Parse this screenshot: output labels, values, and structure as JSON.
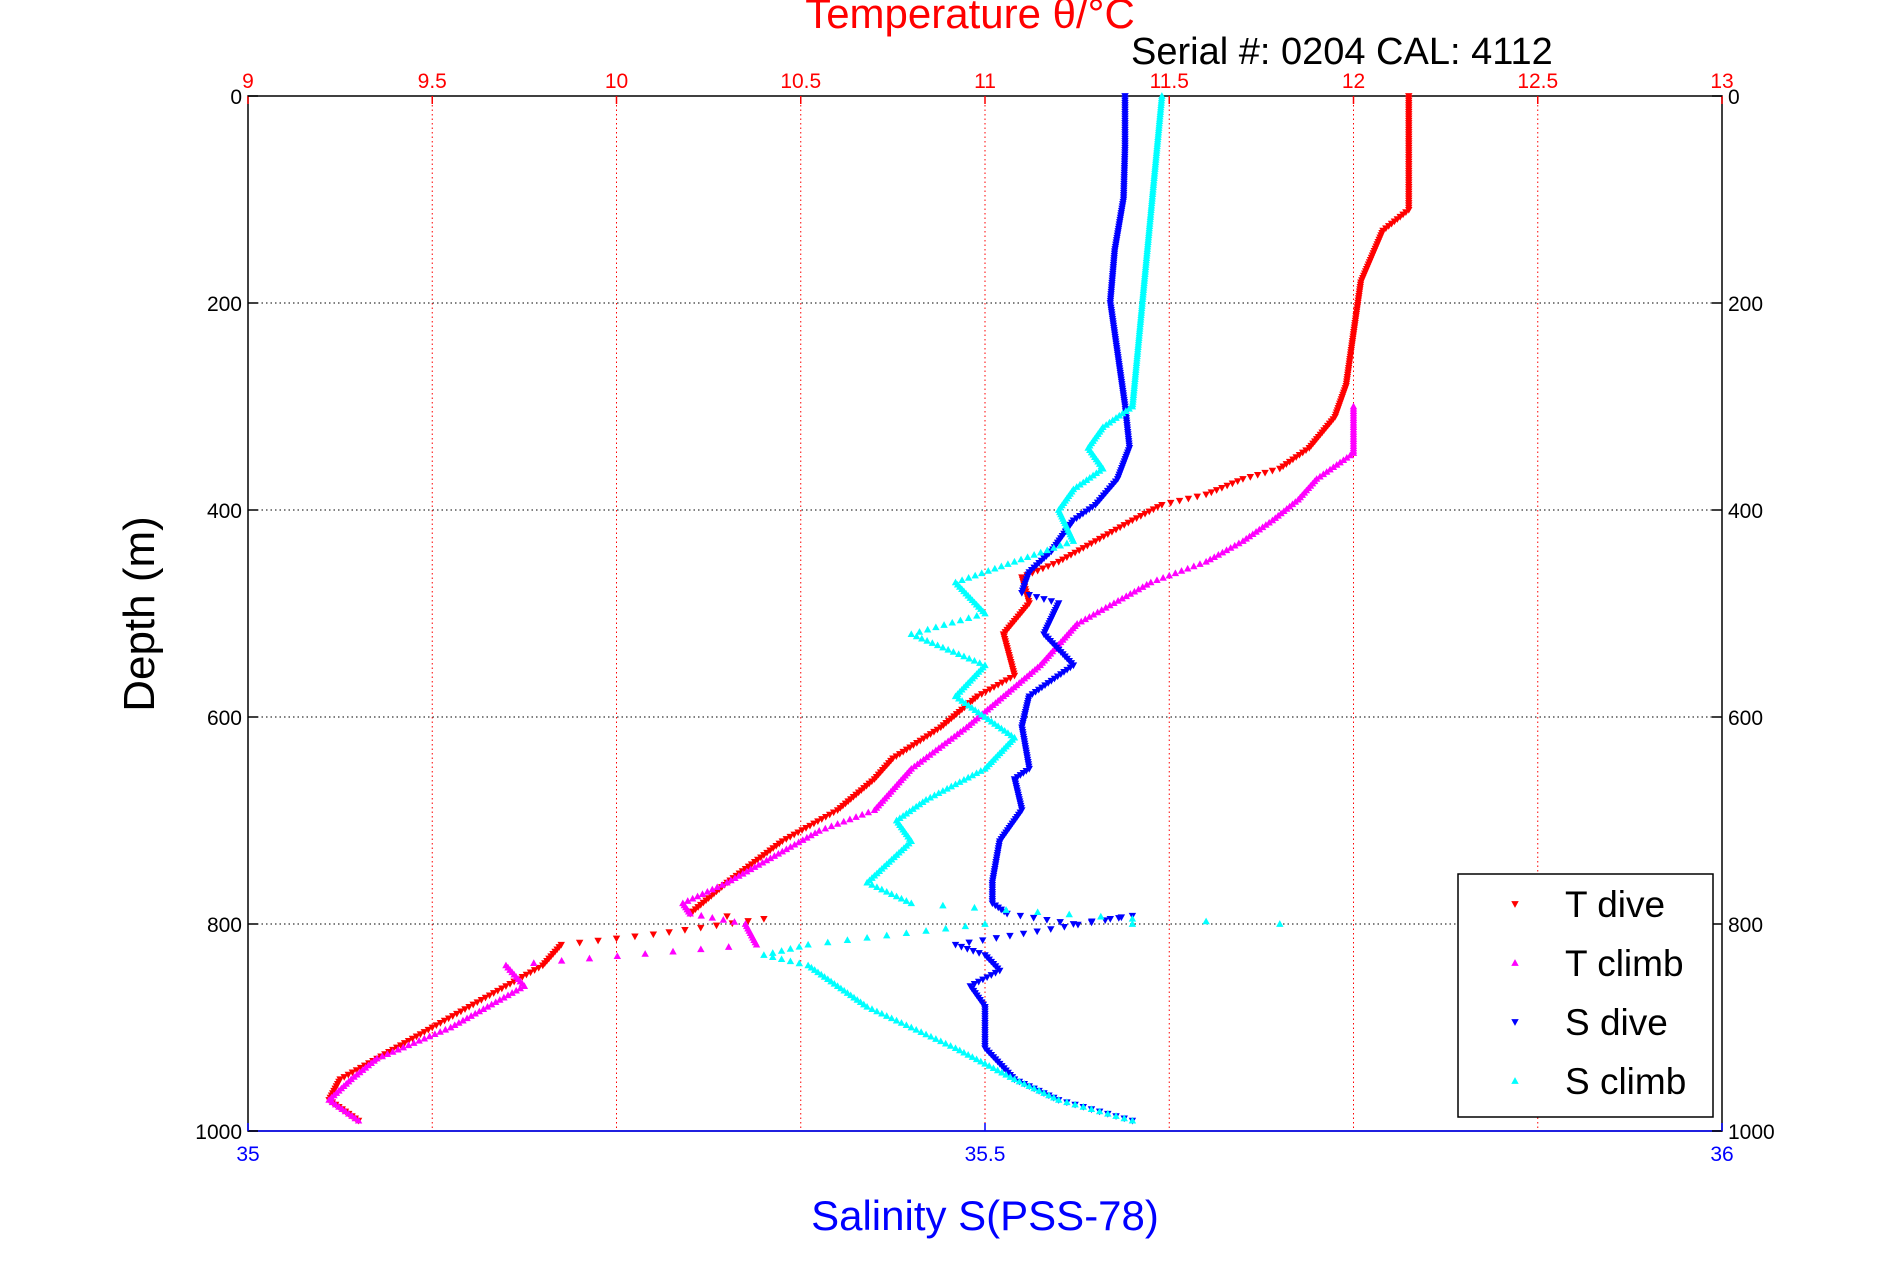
{
  "chart_data": {
    "type": "scatter",
    "title": "Temperature θ/°C",
    "serial_text": "Serial #: 0204  CAL: 4112",
    "xlabel": "Salinity S(PSS-78)",
    "ylabel": "Depth (m)",
    "temperature_axis": {
      "range": [
        9,
        13
      ],
      "ticks": [
        "9",
        "9.5",
        "10",
        "10.5",
        "11",
        "11.5",
        "12",
        "12.5",
        "13"
      ],
      "color": "#ff0000"
    },
    "salinity_axis": {
      "range": [
        35,
        36
      ],
      "ticks": [
        "35",
        "35.5",
        "36"
      ],
      "color": "#0000ff"
    },
    "depth_axis": {
      "range": [
        0,
        1000
      ],
      "inverted": true,
      "ticks": [
        "0",
        "200",
        "400",
        "600",
        "800",
        "1000"
      ]
    },
    "grid": true,
    "legend_position": "bottom-right",
    "series": [
      {
        "name": "T dive",
        "axis": "temperature",
        "color": "#ff0000",
        "marker": "triangle-down",
        "points": [
          [
            12.15,
            0
          ],
          [
            12.15,
            50
          ],
          [
            12.15,
            110
          ],
          [
            12.08,
            130
          ],
          [
            12.02,
            180
          ],
          [
            12.0,
            230
          ],
          [
            11.98,
            280
          ],
          [
            11.95,
            310
          ],
          [
            11.88,
            340
          ],
          [
            11.8,
            360
          ],
          [
            11.7,
            370
          ],
          [
            11.6,
            385
          ],
          [
            11.48,
            395
          ],
          [
            11.4,
            410
          ],
          [
            11.3,
            430
          ],
          [
            11.2,
            450
          ],
          [
            11.1,
            465
          ],
          [
            11.12,
            490
          ],
          [
            11.05,
            520
          ],
          [
            11.08,
            560
          ],
          [
            10.98,
            580
          ],
          [
            10.88,
            610
          ],
          [
            10.75,
            640
          ],
          [
            10.7,
            660
          ],
          [
            10.6,
            690
          ],
          [
            10.45,
            720
          ],
          [
            10.3,
            760
          ],
          [
            10.2,
            790
          ],
          [
            10.4,
            795
          ],
          [
            10.1,
            810
          ],
          [
            9.85,
            820
          ],
          [
            9.8,
            840
          ],
          [
            9.7,
            860
          ],
          [
            9.6,
            880
          ],
          [
            9.5,
            900
          ],
          [
            9.35,
            930
          ],
          [
            9.25,
            950
          ],
          [
            9.22,
            970
          ],
          [
            9.3,
            990
          ]
        ]
      },
      {
        "name": "T climb",
        "axis": "temperature",
        "color": "#ff00ff",
        "marker": "triangle-up",
        "points": [
          [
            9.3,
            990
          ],
          [
            9.22,
            970
          ],
          [
            9.28,
            950
          ],
          [
            9.35,
            930
          ],
          [
            9.55,
            900
          ],
          [
            9.65,
            880
          ],
          [
            9.75,
            860
          ],
          [
            9.7,
            840
          ],
          [
            10.38,
            820
          ],
          [
            10.35,
            800
          ],
          [
            10.2,
            790
          ],
          [
            10.18,
            780
          ],
          [
            10.3,
            760
          ],
          [
            10.45,
            730
          ],
          [
            10.55,
            710
          ],
          [
            10.7,
            690
          ],
          [
            10.8,
            650
          ],
          [
            10.95,
            610
          ],
          [
            11.05,
            580
          ],
          [
            11.15,
            550
          ],
          [
            11.25,
            510
          ],
          [
            11.35,
            490
          ],
          [
            11.45,
            470
          ],
          [
            11.6,
            450
          ],
          [
            11.7,
            430
          ],
          [
            11.78,
            410
          ],
          [
            11.85,
            390
          ],
          [
            11.9,
            370
          ],
          [
            12.0,
            345
          ],
          [
            12.0,
            320
          ],
          [
            12.0,
            300
          ]
        ]
      },
      {
        "name": "S dive",
        "axis": "salinity",
        "color": "#0000ff",
        "marker": "triangle-down",
        "points": [
          [
            35.595,
            0
          ],
          [
            35.595,
            50
          ],
          [
            35.594,
            100
          ],
          [
            35.588,
            150
          ],
          [
            35.585,
            200
          ],
          [
            35.59,
            250
          ],
          [
            35.595,
            300
          ],
          [
            35.598,
            340
          ],
          [
            35.59,
            370
          ],
          [
            35.575,
            395
          ],
          [
            35.56,
            410
          ],
          [
            35.545,
            440
          ],
          [
            35.53,
            460
          ],
          [
            35.525,
            480
          ],
          [
            35.55,
            490
          ],
          [
            35.54,
            520
          ],
          [
            35.56,
            550
          ],
          [
            35.53,
            580
          ],
          [
            35.525,
            610
          ],
          [
            35.53,
            650
          ],
          [
            35.52,
            660
          ],
          [
            35.525,
            690
          ],
          [
            35.51,
            720
          ],
          [
            35.505,
            760
          ],
          [
            35.505,
            780
          ],
          [
            35.515,
            790
          ],
          [
            35.56,
            800
          ],
          [
            35.585,
            795
          ],
          [
            35.6,
            792
          ],
          [
            35.48,
            820
          ],
          [
            35.5,
            830
          ],
          [
            35.51,
            845
          ],
          [
            35.49,
            860
          ],
          [
            35.5,
            880
          ],
          [
            35.5,
            920
          ],
          [
            35.52,
            950
          ],
          [
            35.55,
            970
          ],
          [
            35.6,
            990
          ]
        ]
      },
      {
        "name": "S climb",
        "axis": "salinity",
        "color": "#00ffff",
        "marker": "triangle-up",
        "points": [
          [
            35.6,
            990
          ],
          [
            35.55,
            970
          ],
          [
            35.52,
            950
          ],
          [
            35.48,
            920
          ],
          [
            35.45,
            900
          ],
          [
            35.42,
            880
          ],
          [
            35.38,
            840
          ],
          [
            35.35,
            830
          ],
          [
            35.38,
            820
          ],
          [
            35.5,
            800
          ],
          [
            35.7,
            800
          ],
          [
            35.6,
            795
          ],
          [
            35.45,
            780
          ],
          [
            35.42,
            760
          ],
          [
            35.45,
            720
          ],
          [
            35.44,
            700
          ],
          [
            35.46,
            680
          ],
          [
            35.5,
            650
          ],
          [
            35.52,
            620
          ],
          [
            35.5,
            600
          ],
          [
            35.48,
            580
          ],
          [
            35.5,
            550
          ],
          [
            35.45,
            520
          ],
          [
            35.5,
            500
          ],
          [
            35.48,
            470
          ],
          [
            35.52,
            450
          ],
          [
            35.56,
            430
          ],
          [
            35.55,
            400
          ],
          [
            35.56,
            380
          ],
          [
            35.58,
            360
          ],
          [
            35.57,
            340
          ],
          [
            35.58,
            320
          ],
          [
            35.6,
            300
          ],
          [
            35.62,
            0
          ]
        ]
      }
    ]
  }
}
